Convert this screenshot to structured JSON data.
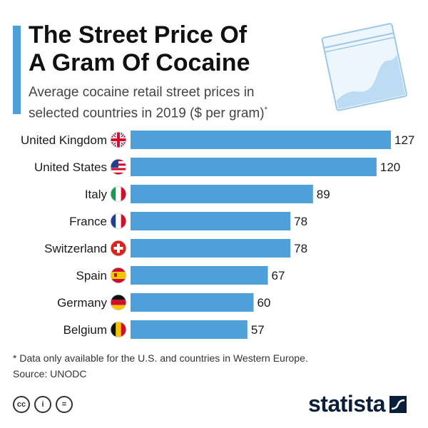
{
  "header": {
    "title_line1": "The Street Price Of",
    "title_line2": "A Gram Of Cocaine",
    "subtitle_line1": "Average cocaine retail street prices in",
    "subtitle_line2": "selected countries in 2019 ($ per gram)",
    "subtitle_mark": "*"
  },
  "chart_data": {
    "type": "bar",
    "orientation": "horizontal",
    "categories": [
      "United Kingdom",
      "United States",
      "Italy",
      "France",
      "Switzerland",
      "Spain",
      "Germany",
      "Belgium"
    ],
    "values": [
      127,
      120,
      89,
      78,
      78,
      67,
      60,
      57
    ],
    "flags": [
      "flag-uk",
      "flag-us",
      "flag-it",
      "flag-fr",
      "flag-ch",
      "flag-es",
      "flag-de",
      "flag-be"
    ],
    "xlim": [
      0,
      127
    ],
    "grid": false,
    "bar_color": "#4f9fd9"
  },
  "footer": {
    "footnote": "* Data only available for the U.S. and countries in Western Europe.",
    "source": "Source: UNODC",
    "cc_icons": [
      "cc-icon",
      "by-icon",
      "nd-icon"
    ],
    "cc_labels": [
      "cc",
      "i",
      "="
    ],
    "brand": "statista"
  },
  "colors": {
    "accent": "#4f9fd9",
    "brand": "#0b1f3a"
  }
}
